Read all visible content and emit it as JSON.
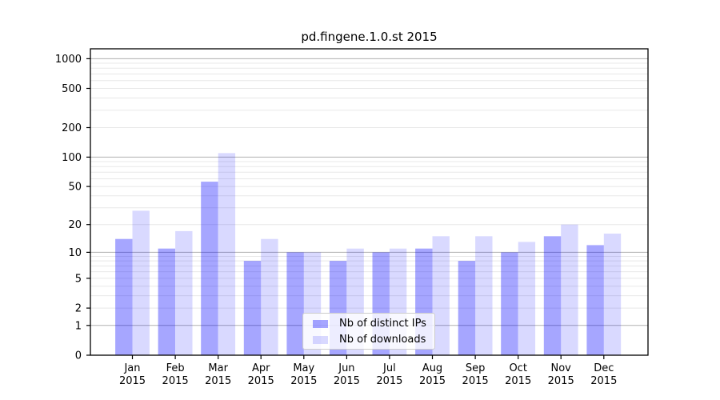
{
  "chart_data": {
    "type": "bar",
    "title": "pd.fingene.1.0.st 2015",
    "categories": [
      "Jan",
      "Feb",
      "Mar",
      "Apr",
      "May",
      "Jun",
      "Jul",
      "Aug",
      "Sep",
      "Oct",
      "Nov",
      "Dec"
    ],
    "year_label": "2015",
    "series": [
      {
        "name": "Nb of distinct IPs",
        "color": "#0000ff",
        "alpha": 0.35,
        "values": [
          14,
          11,
          56,
          8,
          10,
          8,
          10,
          11,
          8,
          10,
          15,
          12
        ]
      },
      {
        "name": "Nb of downloads",
        "color": "#0000ff",
        "alpha": 0.15,
        "values": [
          28,
          17,
          110,
          14,
          10,
          11,
          11,
          15,
          15,
          13,
          20,
          16
        ]
      }
    ],
    "xlabel": "",
    "ylabel": "",
    "y_axis": {
      "scale": "log1p",
      "tick_values": [
        0,
        1,
        2,
        5,
        10,
        20,
        50,
        100,
        200,
        500,
        1000
      ],
      "major_grid_values": [
        1,
        10,
        100,
        1000
      ],
      "ylim": [
        0,
        1260
      ],
      "grid": true
    },
    "legend": {
      "position": "lower center",
      "border_color": "#cccccc",
      "background": "rgba(255,255,255,0.8)"
    },
    "styles": {
      "axis_color": "#000000",
      "major_grid_color": "#b0b0b0",
      "minor_grid_color": "#e8e8e8",
      "text_color": "#000000",
      "bar_width_frac": 0.4
    }
  }
}
